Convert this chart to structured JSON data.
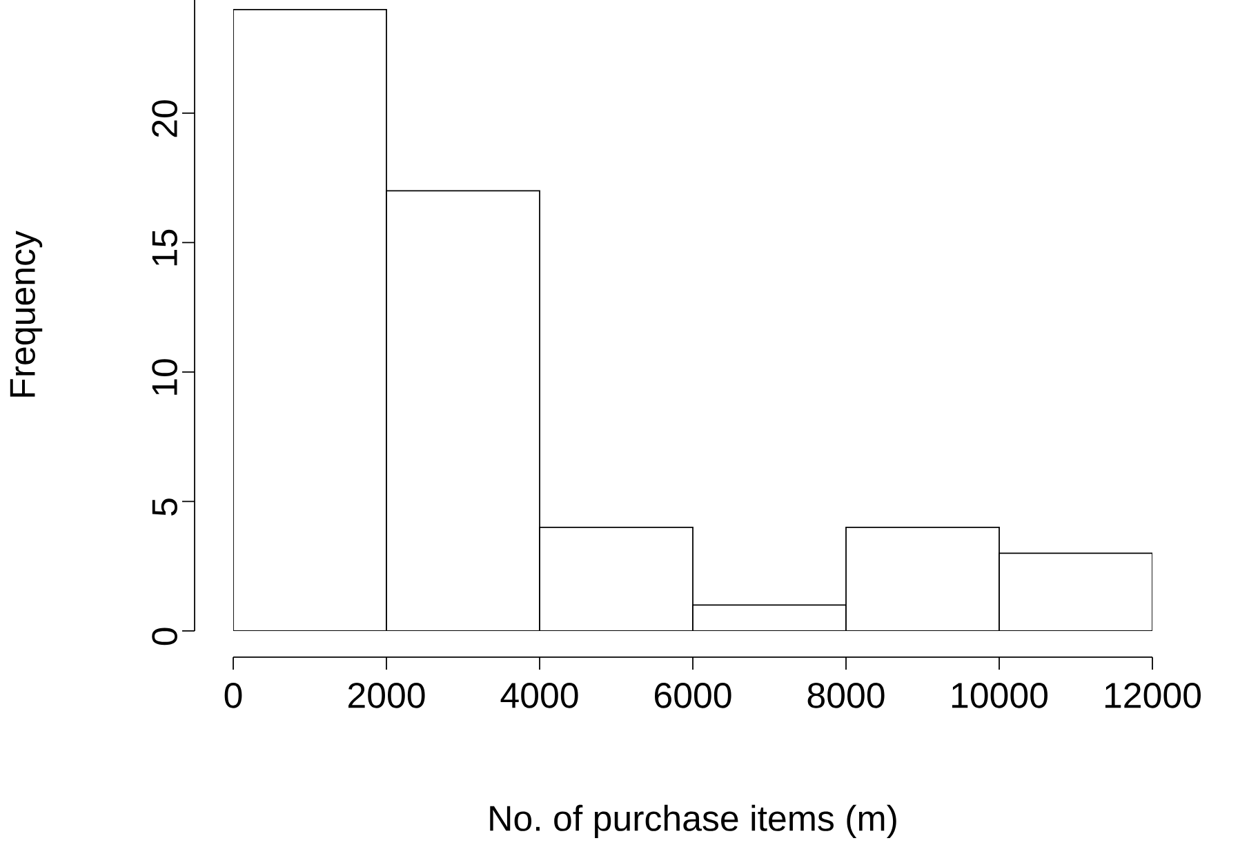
{
  "chart_data": {
    "type": "histogram",
    "xlabel": "No. of purchase items (m)",
    "ylabel": "Frequency",
    "bins": [
      0,
      2000,
      4000,
      6000,
      8000,
      10000,
      12000
    ],
    "values": [
      24,
      17,
      4,
      1,
      4,
      3
    ],
    "color": "#ffffff",
    "xlim": [
      0,
      12000
    ],
    "ylim": [
      0,
      24.4
    ],
    "xticks": [
      0,
      2000,
      4000,
      6000,
      8000,
      10000,
      12000
    ],
    "yticks": [
      0,
      5,
      10,
      15,
      20
    ],
    "grid": false
  }
}
